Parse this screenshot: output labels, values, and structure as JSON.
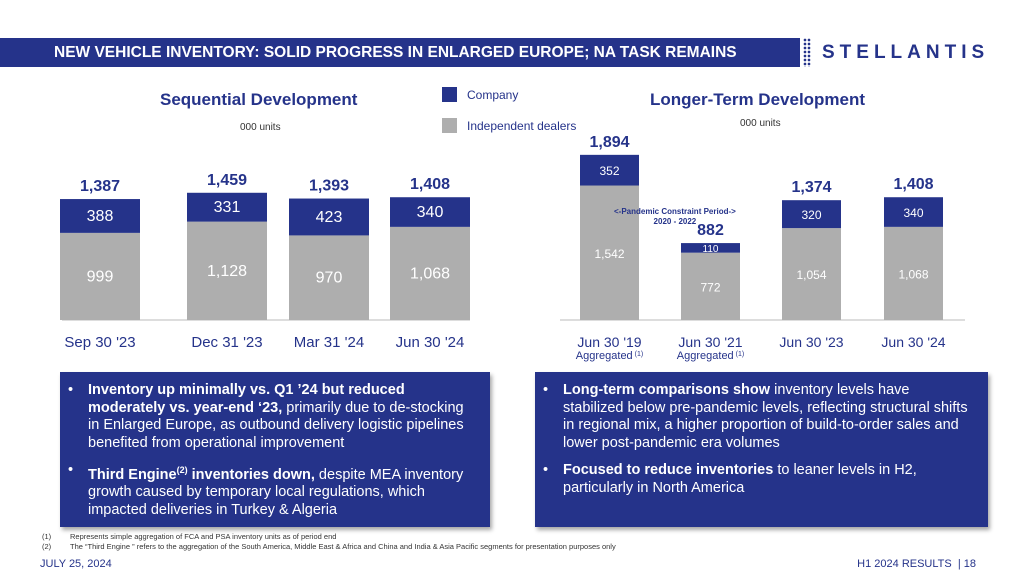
{
  "header": {
    "title": "NEW VEHICLE INVENTORY: SOLID PROGRESS IN ENLARGED EUROPE; NA TASK REMAINS",
    "logo": "STELLANTIS"
  },
  "legend": {
    "company": "Company",
    "dealers": "Independent dealers"
  },
  "colors": {
    "company": "#25338a",
    "dealers": "#aeaeae",
    "accent": "#25338a"
  },
  "chart_data": [
    {
      "type": "bar",
      "stacked": true,
      "title": "Sequential Development",
      "ylabel": "000 units",
      "categories": [
        "Sep 30 '23",
        "Dec 31 '23",
        "Mar 31 '24",
        "Jun 30 '24"
      ],
      "sublabels": [
        "",
        "",
        "",
        ""
      ],
      "totals": [
        "1,387",
        "1,459",
        "1,393",
        "1,408"
      ],
      "series": [
        {
          "name": "Independent dealers",
          "values": [
            999,
            1128,
            970,
            1068
          ],
          "labels": [
            "999",
            "1,128",
            "970",
            "1,068"
          ]
        },
        {
          "name": "Company",
          "values": [
            388,
            331,
            423,
            340
          ],
          "labels": [
            "388",
            "331",
            "423",
            "340"
          ]
        }
      ]
    },
    {
      "type": "bar",
      "stacked": true,
      "title": "Longer-Term Development",
      "ylabel": "000 units",
      "categories": [
        "Jun 30 '19",
        "Jun 30 '21",
        "Jun 30 '23",
        "Jun 30 '24"
      ],
      "sublabels": [
        "Aggregated",
        "Aggregated",
        "",
        ""
      ],
      "totals": [
        "1,894",
        "882",
        "1,374",
        "1,408"
      ],
      "series": [
        {
          "name": "Independent dealers",
          "values": [
            1542,
            772,
            1054,
            1068
          ],
          "labels": [
            "1,542",
            "772",
            "1,054",
            "1,068"
          ]
        },
        {
          "name": "Company",
          "values": [
            352,
            110,
            320,
            340
          ],
          "labels": [
            "352",
            "110",
            "320",
            "340"
          ]
        }
      ],
      "annotation": {
        "line1": "<-Pandemic Constraint Period->",
        "line2": "2020 - 2022"
      }
    }
  ],
  "left_box": {
    "b1_bold": "Inventory up minimally vs. Q1 ’24 but reduced moderately vs. year-end ‘23,",
    "b1_rest": " primarily due to de-stocking in Enlarged Europe, as outbound delivery logistic pipelines benefited from operational improvement",
    "b2_bold": "Third Engine",
    "b2_sup": "(2)",
    "b2_bold2": " inventories down,",
    "b2_rest": " despite MEA inventory growth caused by temporary local regulations, which impacted deliveries in Turkey & Algeria"
  },
  "right_box": {
    "b1_bold": "Long-term comparisons show",
    "b1_rest": " inventory levels have stabilized below pre-pandemic levels, reflecting structural shifts in regional mix, a higher proportion of build-to-order sales and lower post-pandemic era volumes",
    "b2_bold": "Focused to reduce inventories",
    "b2_rest": " to leaner levels in H2, particularly in North America"
  },
  "footnotes": [
    {
      "n": "(1)",
      "text": "Represents simple aggregation of FCA and PSA inventory units as of period end"
    },
    {
      "n": "(2)",
      "text": "The “Third Engine ” refers to the aggregation of the South America, Middle East & Africa and China and India & Asia Pacific segments for presentation purposes only"
    }
  ],
  "footer": {
    "date": "JULY 25, 2024",
    "page": "H1 2024 RESULTS  | 18"
  },
  "fn_mark": "(1)"
}
